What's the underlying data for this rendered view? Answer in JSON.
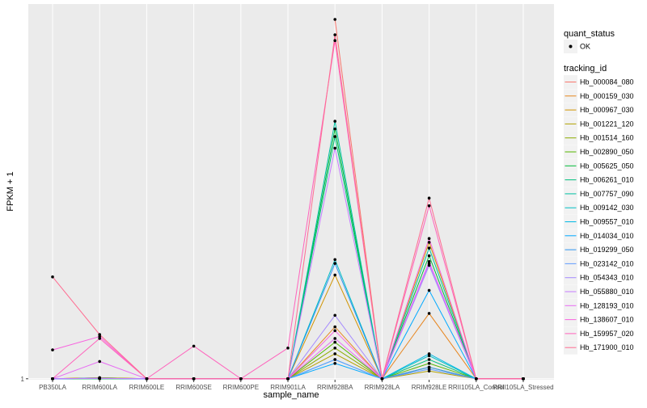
{
  "chart_data": {
    "type": "line",
    "title": "",
    "xlabel": "sample_name",
    "ylabel": "FPKM + 1",
    "categories": [
      "PB350LA",
      "RRIM600LA",
      "RRIM600LE",
      "RRIM600SE",
      "RRIM600PE",
      "RRIM901LA",
      "RRIM928BA",
      "RRIM928LA",
      "RRIM928LE",
      "RRII105LA_Control",
      "RRII105LA_Stressed"
    ],
    "y_ticks": [
      {
        "value": 1,
        "label": "1"
      }
    ],
    "ylim": [
      0.95,
      20.5
    ],
    "grid": true,
    "legend_position": "right",
    "point_legend": {
      "title": "quant_status",
      "items": [
        "OK"
      ]
    },
    "legend_title": "tracking_id",
    "series": [
      {
        "name": "Hb_000084_080",
        "color": "#F8766D",
        "values": [
          null,
          null,
          null,
          null,
          null,
          null,
          19.7,
          1.0,
          null,
          null,
          null
        ]
      },
      {
        "name": "Hb_000159_030",
        "color": "#E7851E",
        "values": [
          1.0,
          1.05,
          1.0,
          1.0,
          1.0,
          1.0,
          3.7,
          1.0,
          4.4,
          1.0,
          1.0
        ]
      },
      {
        "name": "Hb_000967_030",
        "color": "#D09400",
        "values": [
          1.0,
          1.05,
          1.0,
          1.0,
          1.0,
          1.0,
          6.4,
          1.0,
          8.1,
          1.0,
          1.0
        ]
      },
      {
        "name": "Hb_001221_120",
        "color": "#B2A100",
        "values": [
          1.0,
          1.05,
          1.0,
          1.0,
          1.0,
          1.0,
          2.3,
          1.0,
          1.4,
          1.0,
          1.0
        ]
      },
      {
        "name": "Hb_001514_160",
        "color": "#8BAB00",
        "values": [
          1.0,
          1.02,
          1.0,
          1.0,
          1.0,
          1.0,
          2.6,
          1.0,
          1.6,
          1.0,
          1.0
        ]
      },
      {
        "name": "Hb_002890_050",
        "color": "#55B700",
        "values": [
          1.0,
          1.03,
          1.0,
          1.0,
          1.0,
          1.0,
          2.9,
          1.0,
          1.8,
          1.0,
          1.0
        ]
      },
      {
        "name": "Hb_005625_050",
        "color": "#00BA38",
        "values": [
          1.0,
          1.0,
          1.0,
          1.0,
          1.0,
          1.0,
          14.0,
          1.0,
          7.4,
          1.0,
          1.0
        ]
      },
      {
        "name": "Hb_006261_010",
        "color": "#00BF7D",
        "values": [
          1.0,
          1.0,
          1.0,
          1.0,
          1.0,
          1.0,
          13.6,
          1.0,
          2.0,
          1.0,
          1.0
        ]
      },
      {
        "name": "Hb_007757_090",
        "color": "#00C1A3",
        "values": [
          1.0,
          1.02,
          1.0,
          1.0,
          1.0,
          1.0,
          14.4,
          1.0,
          7.8,
          1.0,
          1.0
        ]
      },
      {
        "name": "Hb_009142_030",
        "color": "#00BFC4",
        "values": [
          1.0,
          1.02,
          1.0,
          1.0,
          1.0,
          1.0,
          7.2,
          1.0,
          2.2,
          1.0,
          1.0
        ]
      },
      {
        "name": "Hb_009557_010",
        "color": "#00B8E5",
        "values": [
          1.0,
          1.02,
          1.0,
          1.0,
          1.0,
          1.0,
          2.0,
          1.0,
          2.3,
          1.0,
          1.0
        ]
      },
      {
        "name": "Hb_014034_010",
        "color": "#00A9FF",
        "values": [
          1.0,
          1.02,
          1.0,
          1.0,
          1.0,
          1.0,
          1.8,
          1.0,
          5.6,
          1.0,
          1.0
        ]
      },
      {
        "name": "Hb_019299_050",
        "color": "#2E94F0",
        "values": [
          1.0,
          1.02,
          1.0,
          1.0,
          1.0,
          1.0,
          7.0,
          1.0,
          1.6,
          1.0,
          1.0
        ]
      },
      {
        "name": "Hb_023142_010",
        "color": "#619CFF",
        "values": [
          1.0,
          1.02,
          1.0,
          1.0,
          1.0,
          1.0,
          2.0,
          1.0,
          1.5,
          1.0,
          1.0
        ]
      },
      {
        "name": "Hb_054343_010",
        "color": "#A58AFF",
        "values": [
          1.0,
          1.02,
          1.0,
          1.0,
          1.0,
          1.0,
          4.3,
          1.0,
          6.9,
          1.0,
          1.0
        ]
      },
      {
        "name": "Hb_055880_010",
        "color": "#C77CFF",
        "values": [
          1.0,
          1.02,
          1.0,
          1.0,
          1.0,
          1.0,
          13.0,
          1.0,
          7.0,
          1.0,
          1.0
        ]
      },
      {
        "name": "Hb_128193_010",
        "color": "#E76BF3",
        "values": [
          1.0,
          1.9,
          1.0,
          1.0,
          1.0,
          1.0,
          3.1,
          1.0,
          7.1,
          1.0,
          1.0
        ]
      },
      {
        "name": "Hb_138607_010",
        "color": "#F863DF",
        "values": [
          2.5,
          3.2,
          1.0,
          1.0,
          1.0,
          1.0,
          3.5,
          1.0,
          8.3,
          1.0,
          1.0
        ]
      },
      {
        "name": "Hb_159957_020",
        "color": "#FF62BC",
        "values": [
          1.0,
          3.1,
          1.0,
          2.7,
          1.0,
          2.6,
          18.6,
          1.0,
          10.0,
          1.0,
          1.0
        ]
      },
      {
        "name": "Hb_171900_010",
        "color": "#FF6C91",
        "values": [
          6.3,
          3.3,
          1.0,
          1.0,
          1.0,
          1.0,
          18.9,
          1.0,
          10.4,
          1.0,
          1.0
        ]
      }
    ]
  }
}
